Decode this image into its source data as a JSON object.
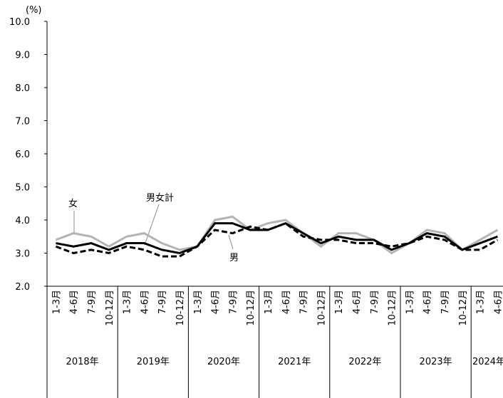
{
  "chart_data": {
    "type": "line",
    "y_unit": "(%)",
    "categories": [
      "1-3月",
      "4-6月",
      "7-9月",
      "10-12月",
      "1-3月",
      "4-6月",
      "7-9月",
      "10-12月",
      "1-3月",
      "4-6月",
      "7-9月",
      "10-12月",
      "1-3月",
      "4-6月",
      "7-9月",
      "10-12月",
      "1-3月",
      "4-6月",
      "7-9月",
      "10-12月",
      "1-3月",
      "4-6月",
      "7-9月",
      "10-12月",
      "1-3月",
      "4-6月"
    ],
    "years": [
      "2018年",
      "2019年",
      "2020年",
      "2021年",
      "2022年",
      "2023年",
      "2024年"
    ],
    "series": [
      {
        "name": "男女計",
        "color": "#000000",
        "dash": false,
        "values": [
          3.3,
          3.2,
          3.3,
          3.1,
          3.3,
          3.3,
          3.1,
          3.0,
          3.2,
          3.9,
          3.9,
          3.7,
          3.7,
          3.9,
          3.6,
          3.3,
          3.5,
          3.4,
          3.4,
          3.1,
          3.3,
          3.6,
          3.5,
          3.1,
          3.3,
          3.5
        ]
      },
      {
        "name": "男",
        "color": "#000000",
        "dash": true,
        "values": [
          3.2,
          3.0,
          3.1,
          3.0,
          3.2,
          3.1,
          2.9,
          2.9,
          3.2,
          3.7,
          3.6,
          3.8,
          3.7,
          3.9,
          3.5,
          3.4,
          3.4,
          3.3,
          3.3,
          3.2,
          3.3,
          3.5,
          3.4,
          3.1,
          3.1,
          3.4
        ]
      },
      {
        "name": "女",
        "color": "#b3b3b3",
        "dash": false,
        "values": [
          3.4,
          3.6,
          3.5,
          3.2,
          3.5,
          3.6,
          3.3,
          3.1,
          3.2,
          4.0,
          4.1,
          3.7,
          3.9,
          4.0,
          3.6,
          3.2,
          3.6,
          3.6,
          3.4,
          3.0,
          3.3,
          3.7,
          3.6,
          3.1,
          3.4,
          3.7
        ]
      }
    ],
    "ylim": [
      2,
      10
    ],
    "yticks": [
      {
        "value": 2,
        "label": "2.0"
      },
      {
        "value": 3,
        "label": "3.0"
      },
      {
        "value": 4,
        "label": "4.0"
      },
      {
        "value": 5,
        "label": "5.0"
      },
      {
        "value": 6,
        "label": "6.0"
      },
      {
        "value": 7,
        "label": "7.0"
      },
      {
        "value": 8,
        "label": "8.0"
      },
      {
        "value": 9,
        "label": "9.0"
      },
      {
        "value": 10,
        "label": "10.0"
      }
    ]
  }
}
